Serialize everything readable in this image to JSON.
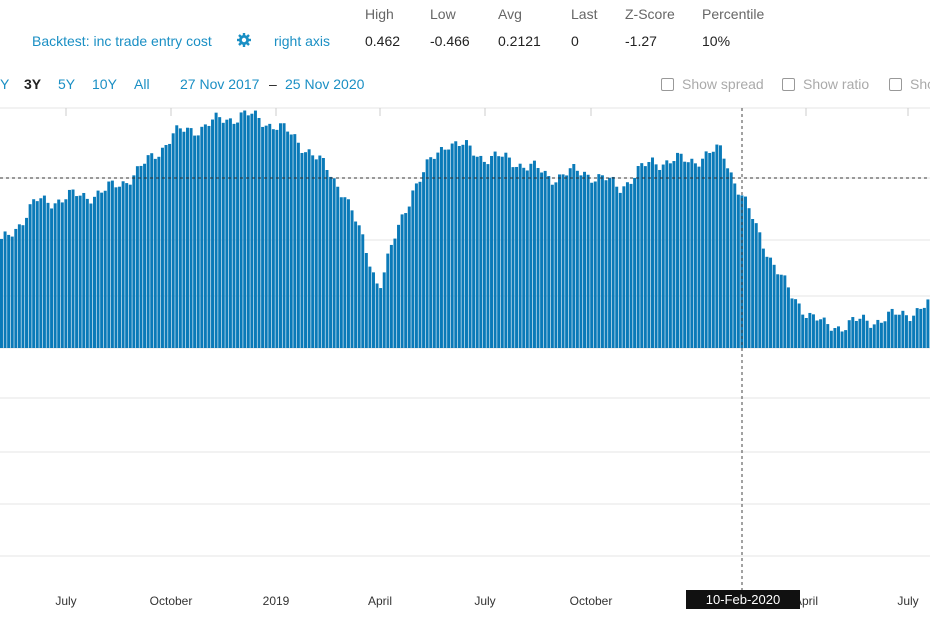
{
  "stats": {
    "headers": [
      "High",
      "Low",
      "Avg",
      "Last",
      "Z-Score",
      "Percentile"
    ],
    "values": [
      "0.462",
      "-0.466",
      "0.2121",
      "0",
      "-1.27",
      "10%"
    ]
  },
  "series_label": "Backtest: inc trade entry cost",
  "settings_icon": "gear-icon",
  "axis_toggle": "right axis",
  "ranges": {
    "cut_label": "Y",
    "buttons": [
      "3Y",
      "5Y",
      "10Y",
      "All"
    ],
    "active": "3Y"
  },
  "date_range": {
    "from": "27 Nov 2017",
    "sep": "–",
    "to": "25 Nov 2020"
  },
  "toggles": {
    "spread": "Show spread",
    "ratio": "Show ratio",
    "third": "Sho"
  },
  "tooltip_date": "10-Feb-2020",
  "colors": {
    "bar": "#0a7ab8",
    "accent": "#1a8fc4",
    "grid": "#e6e6e6"
  },
  "chart_data": {
    "type": "bar",
    "title": "",
    "x_tick_labels": [
      "July",
      "October",
      "2019",
      "April",
      "July",
      "October",
      "April",
      "July"
    ],
    "ylim": [
      -0.466,
      0.462
    ],
    "grid": true,
    "crosshair_date": "10-Feb-2020",
    "series": [
      {
        "name": "Backtest: inc trade entry cost",
        "x": [
          "2018-05",
          "2018-06",
          "2018-07",
          "2018-08",
          "2018-09",
          "2018-10",
          "2018-11",
          "2018-12",
          "2019-01",
          "2019-02",
          "2019-03",
          "2019-04",
          "2019-05",
          "2019-06",
          "2019-07",
          "2019-08",
          "2019-09",
          "2019-10",
          "2019-11",
          "2019-12",
          "2020-01",
          "2020-02",
          "2020-03",
          "2020-04",
          "2020-05",
          "2020-06",
          "2020-07",
          "2020-08"
        ],
        "values": [
          0.2,
          0.28,
          0.29,
          0.3,
          0.34,
          0.41,
          0.43,
          0.45,
          0.43,
          0.38,
          0.3,
          0.12,
          0.31,
          0.4,
          0.37,
          0.36,
          0.33,
          0.34,
          0.31,
          0.36,
          0.36,
          0.38,
          0.23,
          0.1,
          0.04,
          0.05,
          0.06,
          0.08
        ]
      }
    ]
  }
}
